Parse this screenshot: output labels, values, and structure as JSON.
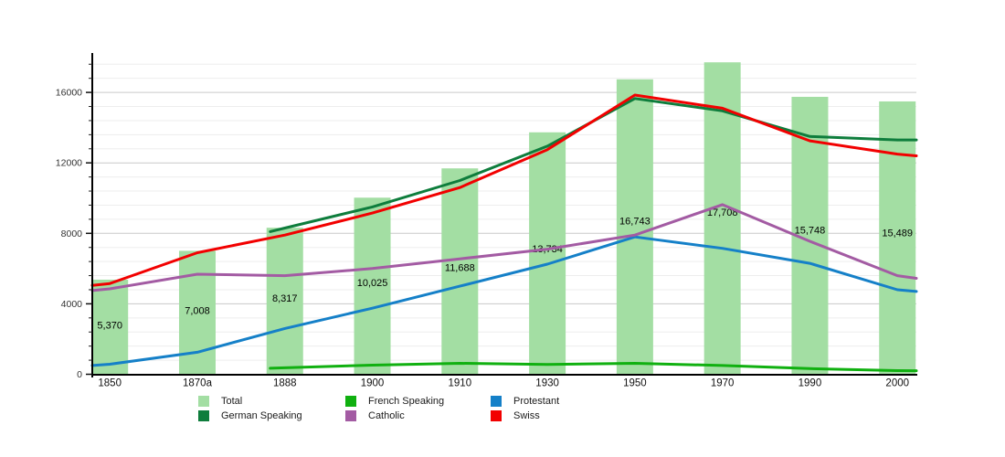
{
  "chart_data": {
    "type": "bar",
    "subtype": "bar-line-combo",
    "title": "",
    "xlabel": "",
    "ylabel": "",
    "categories": [
      "1850",
      "1870a",
      "1888",
      "1900",
      "1910",
      "1930",
      "1950",
      "1970",
      "1990",
      "2000"
    ],
    "bars": {
      "name": "Total",
      "color": "#A3DEA3",
      "values": [
        5370,
        7008,
        8317,
        10025,
        11688,
        13734,
        16743,
        17708,
        15748,
        15489
      ],
      "labels": [
        "5,370",
        "7,008",
        "8,317",
        "10,025",
        "11,688",
        "13,734",
        "16,743",
        "17,708",
        "15,748",
        "15,489"
      ]
    },
    "series": [
      {
        "name": "German Speaking",
        "color": "#0E7D3C",
        "values": [
          null,
          null,
          8300,
          9500,
          11000,
          12950,
          15650,
          14950,
          13500,
          13300
        ],
        "left_edge": null,
        "right_edge": 13300
      },
      {
        "name": "French Speaking",
        "color": "#10B010",
        "values": [
          null,
          null,
          370,
          520,
          620,
          560,
          620,
          500,
          320,
          210
        ],
        "left_edge": null,
        "right_edge": 200
      },
      {
        "name": "Protestant",
        "color": "#1580C8",
        "values": [
          570,
          1250,
          2600,
          3750,
          5000,
          6250,
          7800,
          7150,
          6300,
          4800
        ],
        "left_edge": 500,
        "right_edge": 4700
      },
      {
        "name": "Catholic",
        "color": "#A35BA3",
        "values": [
          4850,
          5680,
          5600,
          6000,
          6550,
          7100,
          7900,
          9630,
          7550,
          5600
        ],
        "left_edge": 4750,
        "right_edge": 5450
      },
      {
        "name": "Swiss",
        "color": "#F20000",
        "values": [
          5150,
          6900,
          7900,
          9150,
          10600,
          12750,
          15850,
          15100,
          13250,
          12500
        ],
        "left_edge": 5050,
        "right_edge": 12400
      }
    ],
    "y_axis": {
      "tick_labels": [
        "0",
        "4000",
        "8000",
        "12000",
        "16000"
      ],
      "major_step": 4000,
      "minor_step": 800,
      "min": 0,
      "max": 18236
    },
    "grid": {
      "major_on": true,
      "minor_on": true,
      "major_color": "#c9c9c9",
      "minor_color": "#ededed"
    },
    "legend_position": "bottom"
  },
  "legend": {
    "columns": [
      {
        "items": [
          {
            "label": "Total",
            "color": "#A3DEA3"
          },
          {
            "label": "German Speaking",
            "color": "#0E7D3C"
          }
        ]
      },
      {
        "items": [
          {
            "label": "French Speaking",
            "color": "#10B010"
          },
          {
            "label": "Catholic",
            "color": "#A35BA3"
          }
        ]
      },
      {
        "items": [
          {
            "label": "Protestant",
            "color": "#1580C8"
          },
          {
            "label": "Swiss",
            "color": "#F20000"
          }
        ]
      }
    ]
  }
}
